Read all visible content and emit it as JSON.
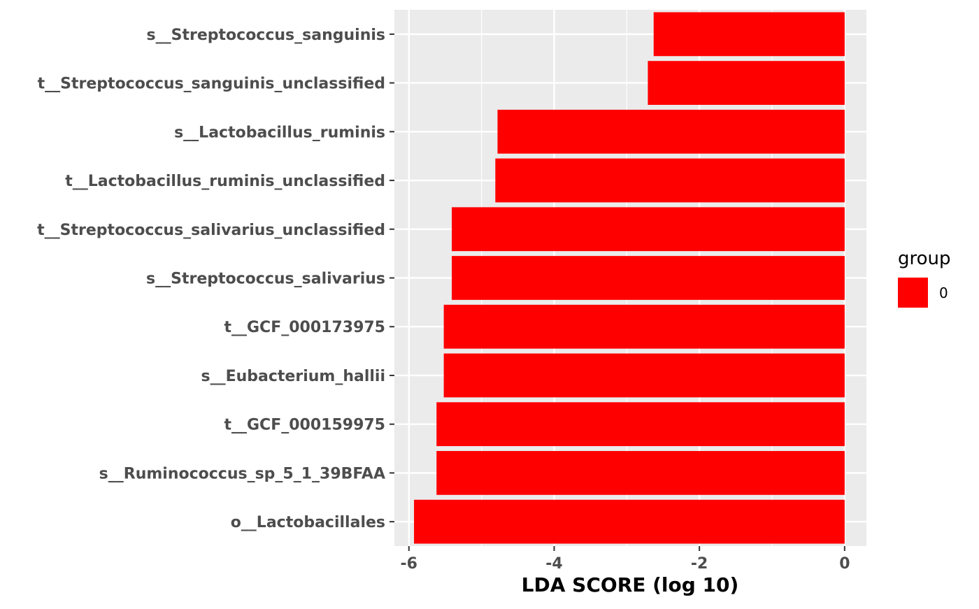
{
  "chart_data": {
    "type": "bar",
    "orientation": "horizontal",
    "categories": [
      "s__Streptococcus_sanguinis",
      "t__Streptococcus_sanguinis_unclassified",
      "s__Lactobacillus_ruminis",
      "t__Lactobacillus_ruminis_unclassified",
      "t__Streptococcus_salivarius_unclassified",
      "s__Streptococcus_salivarius",
      "t__GCF_000173975",
      "s__Eubacterium_hallii",
      "t__GCF_000159975",
      "s__Ruminococcus_sp_5_1_39BFAA",
      "o__Lactobacillales"
    ],
    "values": [
      -2.63,
      -2.71,
      -4.78,
      -4.81,
      -5.41,
      -5.41,
      -5.52,
      -5.52,
      -5.62,
      -5.62,
      -5.93
    ],
    "xlabel": "LDA SCORE (log 10)",
    "ylabel": "",
    "xlim": [
      -6.2,
      0.3
    ],
    "xticks": [
      -6,
      -4,
      -2,
      0
    ],
    "xtick_labels": [
      "-6",
      "-4",
      "-2",
      "0"
    ],
    "grid": true,
    "legend": {
      "title": "group",
      "placement": "right",
      "entries": [
        {
          "label": "0",
          "color": "#ff0000"
        }
      ]
    },
    "colors": {
      "bar": "#ff0000",
      "panel_background": "#ebebeb",
      "gridline": "#ffffff",
      "tick_label": "#4d4d4d"
    }
  }
}
